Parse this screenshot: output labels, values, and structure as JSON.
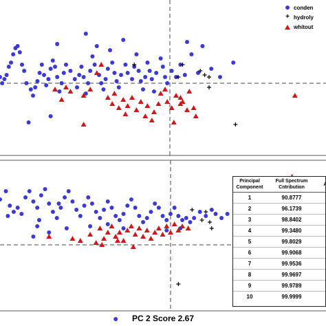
{
  "colors": {
    "condensed": "#3a3ad6",
    "hydrolyzed": "#000000",
    "without": "#d01818"
  },
  "chart_data": [
    {
      "type": "scatter",
      "panel": "upper",
      "legend": {
        "placement": "top-right",
        "entries": [
          {
            "label": "conden",
            "symbol": "circle"
          },
          {
            "label": "hydroly",
            "symbol": "plus"
          },
          {
            "label": "whitout",
            "symbol": "triangle"
          }
        ]
      },
      "series": [
        {
          "name": "conden",
          "symbol": "circle",
          "points": [
            [
              0.0,
              0.3
            ],
            [
              0.1,
              0.0
            ],
            [
              0.2,
              0.2
            ],
            [
              0.3,
              0.4
            ],
            [
              0.4,
              0.8
            ],
            [
              0.5,
              1.0
            ],
            [
              0.6,
              1.4
            ],
            [
              0.7,
              1.7
            ],
            [
              0.8,
              1.8
            ],
            [
              0.9,
              1.5
            ],
            [
              1.0,
              0.9
            ],
            [
              1.1,
              0.6
            ],
            [
              1.2,
              0.0
            ],
            [
              1.4,
              -0.3
            ],
            [
              1.5,
              -0.6
            ],
            [
              1.6,
              -0.2
            ],
            [
              1.7,
              0.1
            ],
            [
              1.8,
              0.5
            ],
            [
              1.9,
              0.9
            ],
            [
              2.0,
              0.4
            ],
            [
              2.1,
              -0.1
            ],
            [
              2.2,
              0.2
            ],
            [
              2.3,
              0.7
            ],
            [
              2.4,
              1.1
            ],
            [
              2.5,
              0.8
            ],
            [
              2.6,
              0.3
            ],
            [
              2.7,
              -0.4
            ],
            [
              2.8,
              0.0
            ],
            [
              2.9,
              0.5
            ],
            [
              3.0,
              0.9
            ],
            [
              3.2,
              0.6
            ],
            [
              3.4,
              0.2
            ],
            [
              3.5,
              -0.2
            ],
            [
              3.6,
              0.4
            ],
            [
              3.7,
              0.8
            ],
            [
              3.8,
              0.3
            ],
            [
              3.9,
              -0.5
            ],
            [
              4.0,
              0.0
            ],
            [
              4.1,
              0.6
            ],
            [
              4.2,
              1.3
            ],
            [
              4.3,
              0.9
            ],
            [
              4.5,
              0.4
            ],
            [
              4.6,
              0.0
            ],
            [
              4.7,
              -0.3
            ],
            [
              4.8,
              0.2
            ],
            [
              4.9,
              0.7
            ],
            [
              5.0,
              1.6
            ],
            [
              5.1,
              1.0
            ],
            [
              5.2,
              0.5
            ],
            [
              5.3,
              0.1
            ],
            [
              5.4,
              -0.2
            ],
            [
              5.5,
              0.4
            ],
            [
              5.7,
              0.9
            ],
            [
              5.8,
              0.5
            ],
            [
              6.0,
              0.2
            ],
            [
              6.1,
              0.8
            ],
            [
              6.2,
              1.4
            ],
            [
              6.3,
              0.6
            ],
            [
              6.4,
              0.1
            ],
            [
              6.5,
              -0.3
            ],
            [
              6.6,
              0.3
            ],
            [
              6.7,
              1.0
            ],
            [
              6.8,
              0.6
            ],
            [
              6.9,
              0.2
            ],
            [
              7.0,
              -0.4
            ],
            [
              7.1,
              0.5
            ],
            [
              7.3,
              1.2
            ],
            [
              7.4,
              0.8
            ],
            [
              7.5,
              0.3
            ],
            [
              7.6,
              0.0
            ],
            [
              7.8,
              0.6
            ],
            [
              8.0,
              0.3
            ],
            [
              8.2,
              0.9
            ],
            [
              8.4,
              0.4
            ],
            [
              8.5,
              2.0
            ],
            [
              8.7,
              1.4
            ],
            [
              9.0,
              0.5
            ],
            [
              9.2,
              1.8
            ],
            [
              9.6,
              0.7
            ],
            [
              10.0,
              0.3
            ],
            [
              10.6,
              1.0
            ],
            [
              1.3,
              -1.9
            ],
            [
              2.3,
              -1.6
            ],
            [
              2.6,
              1.9
            ],
            [
              3.9,
              2.4
            ],
            [
              4.4,
              1.8
            ],
            [
              5.6,
              2.1
            ]
          ]
        },
        {
          "name": "hydroly",
          "symbol": "plus",
          "points": [
            [
              6.1,
              0.9
            ],
            [
              8.1,
              0.3
            ],
            [
              8.3,
              0.9
            ],
            [
              9.1,
              0.6
            ],
            [
              9.3,
              0.4
            ],
            [
              9.5,
              0.3
            ],
            [
              9.5,
              -0.2
            ],
            [
              10.7,
              -2.0
            ]
          ]
        },
        {
          "name": "whitout",
          "symbol": "triangle",
          "points": [
            [
              2.5,
              -0.3
            ],
            [
              3.2,
              -0.4
            ],
            [
              3.8,
              -0.6
            ],
            [
              4.1,
              -0.3
            ],
            [
              4.4,
              0.5
            ],
            [
              4.6,
              0.9
            ],
            [
              4.9,
              -0.7
            ],
            [
              5.1,
              -1.0
            ],
            [
              5.2,
              -0.5
            ],
            [
              5.4,
              -1.2
            ],
            [
              5.6,
              -0.8
            ],
            [
              5.7,
              -1.5
            ],
            [
              5.8,
              -1.1
            ],
            [
              6.0,
              -0.7
            ],
            [
              6.2,
              -1.3
            ],
            [
              6.4,
              -0.9
            ],
            [
              6.6,
              -1.6
            ],
            [
              6.7,
              -1.1
            ],
            [
              6.9,
              -1.8
            ],
            [
              7.0,
              -1.4
            ],
            [
              7.2,
              -1.0
            ],
            [
              7.3,
              -0.5
            ],
            [
              7.5,
              -0.3
            ],
            [
              7.6,
              -0.9
            ],
            [
              7.8,
              -1.2
            ],
            [
              8.0,
              -0.6
            ],
            [
              8.2,
              -0.7
            ],
            [
              8.5,
              -1.3
            ],
            [
              8.9,
              -1.6
            ],
            [
              13.4,
              -0.6
            ],
            [
              8.6,
              -0.4
            ],
            [
              3.0,
              -0.2
            ],
            [
              2.8,
              -0.8
            ],
            [
              3.8,
              -2.0
            ],
            [
              7.9,
              -1.9
            ],
            [
              8.8,
              -1.2
            ],
            [
              8.3,
              -0.9
            ],
            [
              8.2,
              -1.0
            ]
          ]
        }
      ]
    },
    {
      "type": "scatter",
      "panel": "lower",
      "xlabel": "PC 2 Score 2.67",
      "series": [
        {
          "name": "conden",
          "symbol": "circle",
          "points": [
            [
              0.0,
              2.2
            ],
            [
              0.3,
              2.6
            ],
            [
              0.5,
              1.9
            ],
            [
              0.7,
              1.6
            ],
            [
              0.9,
              1.8
            ],
            [
              1.1,
              1.5
            ],
            [
              1.3,
              2.3
            ],
            [
              1.5,
              2.6
            ],
            [
              1.7,
              2.1
            ],
            [
              1.9,
              1.8
            ],
            [
              2.1,
              2.4
            ],
            [
              2.3,
              2.7
            ],
            [
              2.5,
              2.0
            ],
            [
              2.7,
              1.6
            ],
            [
              2.9,
              1.3
            ],
            [
              3.1,
              1.8
            ],
            [
              3.3,
              2.3
            ],
            [
              3.5,
              2.6
            ],
            [
              3.7,
              2.1
            ],
            [
              3.9,
              1.7
            ],
            [
              4.1,
              1.4
            ],
            [
              4.3,
              1.9
            ],
            [
              4.5,
              2.3
            ],
            [
              4.7,
              2.0
            ],
            [
              4.9,
              1.6
            ],
            [
              5.1,
              1.3
            ],
            [
              5.3,
              1.7
            ],
            [
              5.5,
              2.1
            ],
            [
              5.7,
              1.8
            ],
            [
              5.9,
              1.4
            ],
            [
              6.1,
              1.2
            ],
            [
              6.3,
              1.5
            ],
            [
              6.5,
              1.9
            ],
            [
              6.7,
              2.2
            ],
            [
              6.9,
              1.8
            ],
            [
              7.1,
              1.4
            ],
            [
              7.3,
              1.1
            ],
            [
              7.5,
              1.3
            ],
            [
              7.7,
              1.6
            ],
            [
              7.9,
              2.0
            ],
            [
              8.1,
              1.8
            ],
            [
              8.3,
              1.4
            ],
            [
              8.5,
              1.2
            ],
            [
              8.7,
              1.5
            ],
            [
              8.9,
              1.8
            ],
            [
              9.1,
              1.4
            ],
            [
              9.3,
              1.2
            ],
            [
              9.5,
              1.3
            ],
            [
              9.7,
              1.1
            ],
            [
              9.9,
              1.3
            ],
            [
              10.2,
              1.6
            ],
            [
              10.5,
              1.4
            ],
            [
              10.8,
              1.7
            ],
            [
              11.0,
              1.5
            ],
            [
              11.3,
              1.3
            ],
            [
              11.6,
              1.5
            ],
            [
              5.9,
              -3.6
            ],
            [
              1.7,
              0.4
            ],
            [
              1.9,
              0.9
            ],
            [
              2.5,
              0.6
            ],
            [
              3.4,
              0.8
            ],
            [
              4.6,
              0.9
            ],
            [
              5.5,
              1.0
            ],
            [
              6.3,
              0.8
            ],
            [
              8.5,
              0.7
            ],
            [
              9.2,
              0.8
            ],
            [
              0.4,
              1.4
            ],
            [
              2.0,
              1.2
            ],
            [
              3.0,
              2.0
            ]
          ]
        },
        {
          "name": "hydroly",
          "symbol": "plus",
          "points": [
            [
              9.8,
              1.7
            ],
            [
              10.3,
              1.2
            ],
            [
              10.5,
              1.6
            ],
            [
              10.7,
              1.1
            ],
            [
              10.8,
              0.8
            ],
            [
              9.1,
              -1.9
            ]
          ]
        },
        {
          "name": "whitout",
          "symbol": "triangle",
          "points": [
            [
              2.5,
              0.4
            ],
            [
              3.7,
              0.3
            ],
            [
              4.1,
              0.2
            ],
            [
              4.6,
              0.5
            ],
            [
              5.1,
              0.8
            ],
            [
              5.3,
              0.3
            ],
            [
              5.5,
              0.6
            ],
            [
              5.7,
              0.9
            ],
            [
              5.9,
              0.4
            ],
            [
              6.1,
              0.6
            ],
            [
              6.3,
              0.2
            ],
            [
              6.5,
              0.7
            ],
            [
              6.7,
              0.9
            ],
            [
              6.9,
              0.5
            ],
            [
              7.1,
              0.8
            ],
            [
              7.3,
              0.4
            ],
            [
              7.5,
              0.7
            ],
            [
              7.7,
              0.3
            ],
            [
              7.9,
              0.6
            ],
            [
              8.1,
              0.8
            ],
            [
              8.3,
              0.5
            ],
            [
              8.5,
              0.9
            ],
            [
              8.7,
              0.6
            ],
            [
              8.9,
              1.0
            ],
            [
              9.1,
              0.7
            ],
            [
              9.3,
              0.9
            ],
            [
              5.2,
              0.0
            ],
            [
              6.8,
              -0.1
            ],
            [
              4.9,
              0.1
            ],
            [
              14.9,
              3.3
            ],
            [
              9.6,
              0.8
            ],
            [
              6.0,
              0.2
            ]
          ]
        }
      ],
      "table": {
        "headers": [
          "Principal Component",
          "Full Spectrum Cntribution",
          "An"
        ],
        "rows": [
          [
            "1",
            "90.8777",
            ""
          ],
          [
            "2",
            "96.1739",
            ""
          ],
          [
            "3",
            "98.8402",
            ""
          ],
          [
            "4",
            "99.3480",
            ""
          ],
          [
            "5",
            "99.8029",
            ""
          ],
          [
            "6",
            "99.9068",
            ""
          ],
          [
            "7",
            "99.9536",
            ""
          ],
          [
            "8",
            "99.9697",
            ""
          ],
          [
            "9",
            "99.9789",
            ""
          ],
          [
            "10",
            "99.9999",
            ""
          ]
        ]
      }
    }
  ]
}
